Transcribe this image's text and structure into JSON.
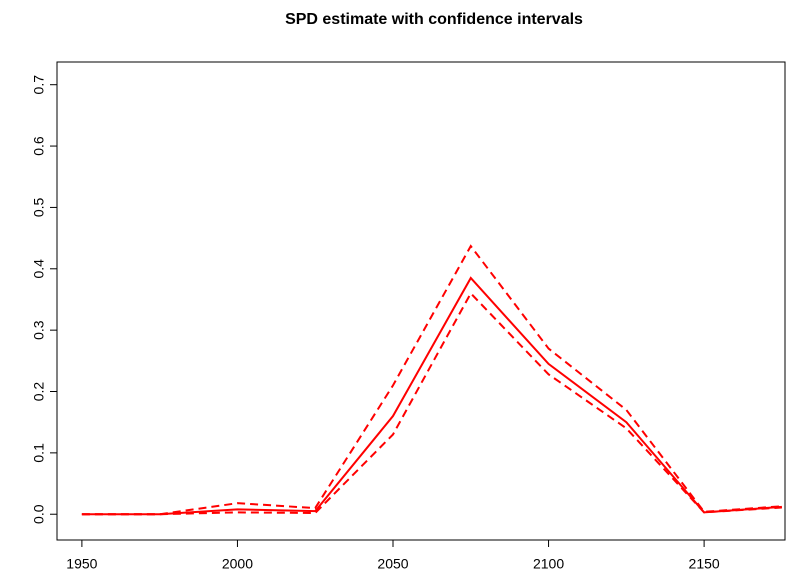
{
  "chart_data": {
    "type": "line",
    "title": "SPD estimate with confidence intervals",
    "x": [
      1950,
      1975,
      2000,
      2025,
      2050,
      2075,
      2100,
      2125,
      2150,
      2175
    ],
    "series": [
      {
        "color": "#ff0000",
        "dash": false,
        "values": [
          0,
          0,
          0.008,
          0.005,
          0.16,
          0.385,
          0.245,
          0.15,
          0.003,
          0.012
        ]
      },
      {
        "color": "#ff0000",
        "dash": true,
        "values": [
          0,
          0,
          0.018,
          0.01,
          0.21,
          0.437,
          0.27,
          0.17,
          0.004,
          0.013
        ]
      },
      {
        "color": "#ff0000",
        "dash": true,
        "values": [
          0,
          0,
          0.003,
          0.002,
          0.13,
          0.36,
          0.228,
          0.14,
          0.003,
          0.011
        ]
      }
    ],
    "xlim": [
      1942,
      2176
    ],
    "xticks": [
      1950,
      2000,
      2050,
      2100,
      2150
    ],
    "ylim": [
      -0.042,
      0.737
    ],
    "yticks": [
      {
        "value": 0,
        "label": "0.0"
      },
      0.1,
      0.2,
      0.3,
      0.4,
      0.5,
      0.6,
      0.7
    ]
  }
}
